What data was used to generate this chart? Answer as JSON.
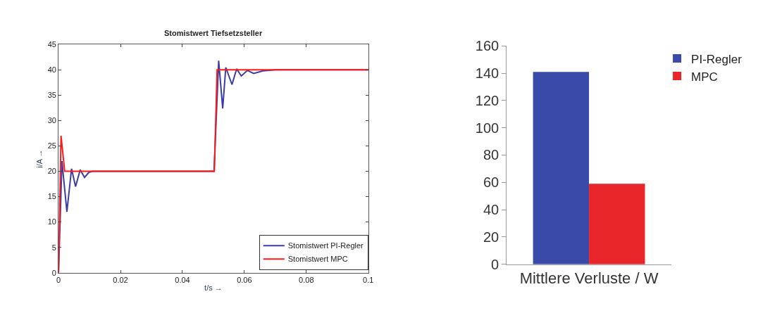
{
  "chart_data": [
    {
      "type": "line",
      "title": "Stomistwert Tiefsetzsteller",
      "xlabel": "t/s →",
      "ylabel": "i/A →",
      "xlim": [
        0,
        0.1
      ],
      "xticks": [
        0,
        0.02,
        0.04,
        0.06,
        0.08,
        0.1
      ],
      "ylim": [
        0,
        45
      ],
      "yticks": [
        0,
        5,
        10,
        15,
        20,
        25,
        30,
        35,
        40,
        45
      ],
      "legend": "bottom right",
      "series": [
        {
          "name": "Stomistwert PI-Regler",
          "color": "#3c3ca8",
          "x": [
            0,
            0.0011,
            0.0027,
            0.0042,
            0.0055,
            0.007,
            0.0084,
            0.0098,
            0.011,
            0.03,
            0.0502,
            0.0517,
            0.053,
            0.054,
            0.056,
            0.0575,
            0.059,
            0.061,
            0.063,
            0.066,
            0.07,
            0.1
          ],
          "values": [
            0,
            22,
            12,
            20.5,
            17,
            20.3,
            18.8,
            19.8,
            20,
            20,
            20,
            41.8,
            32.4,
            40.5,
            37.1,
            40.2,
            38.8,
            39.9,
            39.3,
            39.8,
            40,
            40
          ]
        },
        {
          "name": "Stomistwert MPC",
          "color": "#ff1a1a",
          "x": [
            0,
            0.0008,
            0.002,
            0.03,
            0.0503,
            0.0512,
            0.1
          ],
          "values": [
            0,
            27,
            20,
            20,
            20,
            40,
            40
          ]
        }
      ]
    },
    {
      "type": "bar",
      "categories": [
        "Mittlere Verluste / W"
      ],
      "ylim": [
        0,
        160
      ],
      "yticks": [
        0,
        20,
        40,
        60,
        80,
        100,
        120,
        140,
        160
      ],
      "legend": "top right",
      "series": [
        {
          "name": "PI-Regler",
          "color": "#3a4aa8",
          "values": [
            141
          ]
        },
        {
          "name": "MPC",
          "color": "#e8262a",
          "values": [
            59
          ]
        }
      ]
    }
  ]
}
